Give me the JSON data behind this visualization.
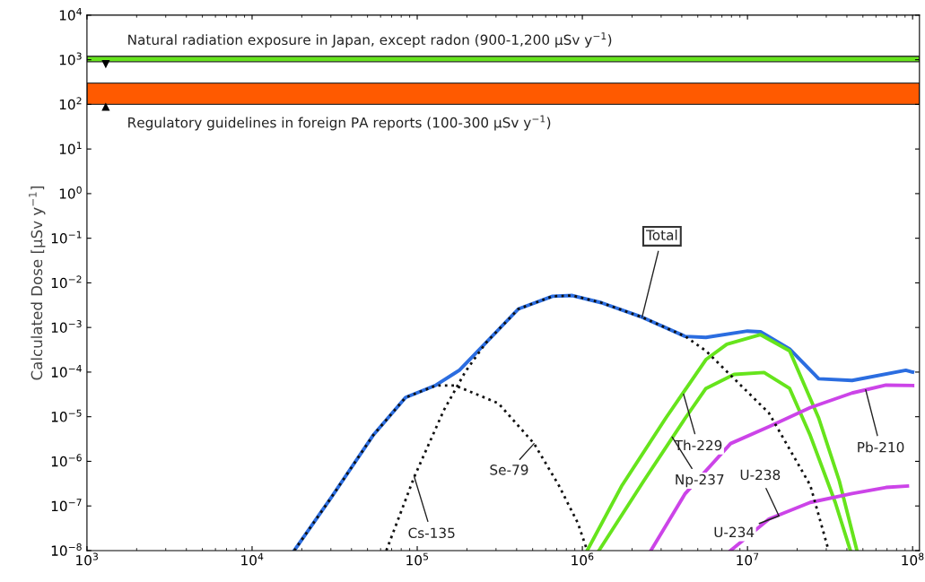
{
  "chart_data": {
    "type": "line",
    "ylabel": "Calculated Dose [μSv y$^{−1}$]",
    "log": "xy",
    "xlim": [
      1000,
      110000000
    ],
    "ylim": [
      1e-08,
      10000
    ],
    "xticks": [
      {
        "value": 1000,
        "label": "10$^{3}$"
      },
      {
        "value": 10000,
        "label": "10$^{4}$"
      },
      {
        "value": 100000,
        "label": "10$^{5}$"
      },
      {
        "value": 1000000,
        "label": "10$^{6}$"
      },
      {
        "value": 10000000,
        "label": "10$^{7}$"
      },
      {
        "value": 100000000,
        "label": "10$^{8}$"
      }
    ],
    "yticks": [
      {
        "value": 1e-08,
        "label": "10$^{−8}$"
      },
      {
        "value": 1e-07,
        "label": "10$^{−7}$"
      },
      {
        "value": 1e-06,
        "label": "10$^{−6}$"
      },
      {
        "value": 1e-05,
        "label": "10$^{−5}$"
      },
      {
        "value": 0.0001,
        "label": "10$^{−4}$"
      },
      {
        "value": 0.001,
        "label": "10$^{−3}$"
      },
      {
        "value": 0.01,
        "label": "10$^{−2}$"
      },
      {
        "value": 0.1,
        "label": "10$^{−1}$"
      },
      {
        "value": 1,
        "label": "10$^{0}$"
      },
      {
        "value": 10,
        "label": "10$^{1}$"
      },
      {
        "value": 100,
        "label": "10$^{2}$"
      },
      {
        "value": 1000,
        "label": "10$^{3}$"
      },
      {
        "value": 10000,
        "label": "10$^{4}$"
      }
    ],
    "grid": false,
    "legend": false,
    "series": [
      {
        "color": "#2b6de0",
        "line_style": "solid",
        "x": [
          18000,
          30000,
          54000,
          85000,
          130000,
          180000,
          260000,
          410000,
          660000,
          870000,
          1300000,
          2300000,
          4200000,
          5600000,
          10000000,
          12000000,
          18000000,
          27000000,
          43000000,
          91000000,
          100000000
        ],
        "values": [
          1e-08,
          1.5e-07,
          3.8e-06,
          2.7e-05,
          5.1e-05,
          0.00011,
          0.00045,
          0.0026,
          0.005,
          0.0052,
          0.0036,
          0.0017,
          0.00063,
          0.0006,
          0.00083,
          0.0008,
          0.00033,
          7.1e-05,
          6.5e-05,
          0.00011,
          0.0001
        ]
      },
      {
        "color": "#111111",
        "line_style": "dotted",
        "x": [
          18000,
          30000,
          54000,
          85000,
          130000,
          170000,
          310000,
          510000,
          720000,
          940000,
          1070000
        ],
        "values": [
          1e-08,
          1.5e-07,
          3.8e-06,
          2.7e-05,
          5e-05,
          5e-05,
          2e-05,
          2.5e-06,
          2.9e-07,
          4.1e-08,
          1e-08
        ]
      },
      {
        "color": "#111111",
        "line_style": "dotted",
        "x": [
          65000,
          96000,
          145000,
          195000,
          260000,
          410000,
          660000,
          870000,
          1300000,
          2300000,
          4200000,
          5600000,
          13500000,
          24000000,
          31000000
        ],
        "values": [
          1e-08,
          4.5e-07,
          1.4e-05,
          0.0001,
          0.00045,
          0.0026,
          0.005,
          0.0052,
          0.0036,
          0.0017,
          0.00063,
          0.0003,
          1.2e-05,
          2.9e-07,
          1e-08
        ]
      },
      {
        "color": "#66e41c",
        "line_style": "solid",
        "x": [
          1070000,
          1740000,
          3200000,
          5600000,
          7500000,
          12000000,
          18000000,
          27000000,
          36000000,
          46000000
        ],
        "values": [
          1e-08,
          2.9e-07,
          9.3e-06,
          0.00019,
          0.00042,
          0.00069,
          0.0003,
          9.3e-06,
          3.6e-07,
          1e-08
        ]
      },
      {
        "color": "#66e41c",
        "line_style": "solid",
        "x": [
          1260000,
          2350000,
          4200000,
          5600000,
          8300000,
          12600000,
          18000000,
          24000000,
          34000000,
          42000000
        ],
        "values": [
          1e-08,
          3.6e-07,
          9.3e-06,
          4.3e-05,
          8.9e-05,
          9.8e-05,
          4.3e-05,
          3.8e-06,
          1.2e-07,
          1e-08
        ]
      },
      {
        "color": "#cc44e8",
        "line_style": "solid",
        "x": [
          2600000,
          4200000,
          7900000,
          13500000,
          24000000,
          43000000,
          69000000,
          100000000
        ],
        "values": [
          1e-08,
          1.9e-07,
          2.5e-06,
          6e-06,
          1.6e-05,
          3.4e-05,
          5.1e-05,
          5e-05
        ]
      },
      {
        "color": "#cc44e8",
        "line_style": "solid",
        "x": [
          7900000,
          13500000,
          24000000,
          43000000,
          69000000,
          93000000
        ],
        "values": [
          1e-08,
          5.1e-08,
          1.2e-07,
          1.9e-07,
          2.6e-07,
          2.8e-07
        ]
      }
    ],
    "bands": [
      {
        "axis": "y",
        "from": 900,
        "to": 1200,
        "color": "#66e41c",
        "label": "Natural radiation exposure in Japan, except radon (900-1,200 μSv y$^{−1}$)"
      },
      {
        "axis": "y",
        "from": 100,
        "to": 300,
        "color": "#ff5a00",
        "label": "Regulatory guidelines in foreign PA reports (100-300 μSv y$^{−1}$)"
      }
    ],
    "annotations": [
      {
        "text": "Total",
        "x": 2300000,
        "y": 0.0017
      },
      {
        "text": "Th-229",
        "x": 4100000,
        "y": 3.2e-05
      },
      {
        "text": "Np-237",
        "x": 3500000,
        "y": 3.5e-06
      },
      {
        "text": "Se-79",
        "x": 510000,
        "y": 2.5e-06
      },
      {
        "text": "Cs-135",
        "x": 96000,
        "y": 4.5e-07
      },
      {
        "text": "Pb-210",
        "x": 52000000,
        "y": 4e-05
      },
      {
        "text": "U-238",
        "x": 15500000,
        "y": 6e-08
      },
      {
        "text": "U-234",
        "x": 15500000,
        "y": 6e-08
      }
    ]
  }
}
